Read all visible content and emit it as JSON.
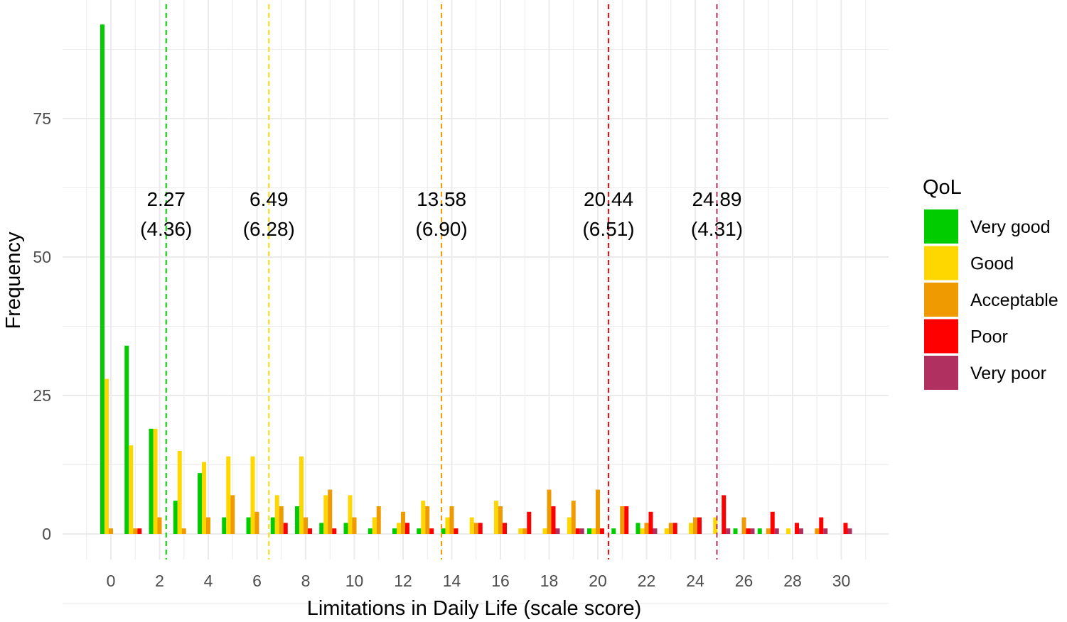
{
  "chart_data": {
    "type": "bar",
    "title": "",
    "xlabel": "Limitations in Daily Life (scale score)",
    "ylabel": "Frequency",
    "xlim": [
      -1,
      32
    ],
    "ylim": [
      -9,
      100
    ],
    "x_ticks": [
      0,
      2,
      4,
      6,
      8,
      10,
      12,
      14,
      16,
      18,
      20,
      22,
      24,
      26,
      28,
      30
    ],
    "y_ticks": [
      0,
      25,
      50,
      75
    ],
    "grid": true,
    "legend": {
      "title": "QoL",
      "position": "right"
    },
    "x": [
      0,
      1,
      2,
      3,
      4,
      5,
      6,
      7,
      8,
      9,
      10,
      11,
      12,
      13,
      14,
      15,
      16,
      17,
      18,
      19,
      20,
      21,
      22,
      23,
      24,
      25,
      26,
      27,
      28,
      29,
      30
    ],
    "series": [
      {
        "name": "Very good",
        "color": "#00CC00",
        "values": [
          92,
          34,
          19,
          6,
          11,
          3,
          3,
          3,
          5,
          2,
          2,
          1,
          1,
          1,
          1,
          0,
          0,
          0,
          0,
          0,
          1,
          1,
          2,
          0,
          0,
          0,
          1,
          1,
          0,
          0,
          0
        ]
      },
      {
        "name": "Good",
        "color": "#FFD700",
        "values": [
          28,
          16,
          19,
          15,
          13,
          14,
          14,
          7,
          14,
          7,
          7,
          3,
          2,
          6,
          3,
          3,
          6,
          1,
          1,
          3,
          1,
          0,
          1,
          1,
          2,
          3,
          0,
          0,
          1,
          0,
          0
        ]
      },
      {
        "name": "Acceptable",
        "color": "#EE9A00",
        "values": [
          1,
          1,
          3,
          1,
          3,
          7,
          4,
          5,
          3,
          8,
          3,
          5,
          4,
          5,
          5,
          2,
          5,
          1,
          8,
          6,
          8,
          5,
          2,
          2,
          3,
          0,
          3,
          1,
          0,
          1,
          0
        ]
      },
      {
        "name": "Poor",
        "color": "#FF0000",
        "values": [
          0,
          1,
          0,
          0,
          0,
          0,
          0,
          2,
          1,
          1,
          0,
          0,
          2,
          1,
          1,
          2,
          2,
          4,
          5,
          1,
          1,
          5,
          4,
          2,
          3,
          7,
          1,
          4,
          2,
          3,
          2
        ]
      },
      {
        "name": "Very poor",
        "color": "#B03060",
        "values": [
          0,
          0,
          0,
          0,
          0,
          0,
          0,
          0,
          0,
          0,
          0,
          0,
          0,
          0,
          0,
          0,
          0,
          0,
          1,
          1,
          0,
          0,
          1,
          0,
          0,
          1,
          1,
          1,
          1,
          1,
          1
        ]
      }
    ],
    "mean_lines": [
      {
        "series": "Very good",
        "x": 2.27,
        "mean_label": "2.27",
        "sd_label": "(4.36)"
      },
      {
        "series": "Good",
        "x": 6.49,
        "mean_label": "6.49",
        "sd_label": "(6.28)"
      },
      {
        "series": "Acceptable",
        "x": 13.58,
        "mean_label": "13.58",
        "sd_label": "(6.90)"
      },
      {
        "series": "Poor",
        "x": 20.44,
        "mean_label": "20.44",
        "sd_label": "(6.51)"
      },
      {
        "series": "Very poor",
        "x": 24.89,
        "mean_label": "24.89",
        "sd_label": "(4.31)"
      }
    ]
  }
}
